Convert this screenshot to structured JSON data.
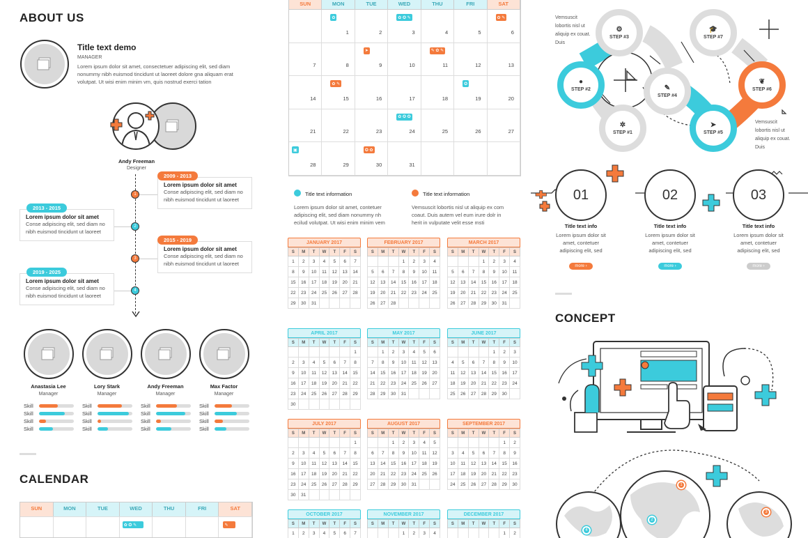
{
  "about": {
    "title": "ABOUT US",
    "demo_title": "Title text demo",
    "demo_role": "MANAGER",
    "demo_text": "Lorem ipsum dolor sit amet, consectetuer adipiscing elit, sed diam nonummy nibh euismod tincidunt ut laoreet dolore gna aliquam erat volutpat. Ut wisi enim minim vm, quis nostrud exerci tation",
    "person_name": "Andy Freeman",
    "person_role": "Designer"
  },
  "timeline": [
    {
      "period": "2009 - 2013",
      "title": "Lorem ipsum dolor sit amet",
      "text": "Conse adipiscing elit, sed diam no nibh euismod tincidunt ut laoreet",
      "node": "1",
      "color": "#f47a3c",
      "side": "right"
    },
    {
      "period": "2013 - 2015",
      "title": "Lorem ipsum dolor sit amet",
      "text": "Conse adipiscing elit, sed diam no nibh euismod tincidunt ut laoreet",
      "node": "2",
      "color": "#3ccbdc",
      "side": "left"
    },
    {
      "period": "2015 - 2019",
      "title": "Lorem ipsum dolor sit amet",
      "text": "Conse adipiscing elit, sed diam no nibh euismod tincidunt ut laoreet",
      "node": "3",
      "color": "#f47a3c",
      "side": "right"
    },
    {
      "period": "2019 - 2025",
      "title": "Lorem ipsum dolor sit amet",
      "text": "Conse adipiscing elit, sed diam no nibh euismod tincidunt ut laoreet",
      "node": "4",
      "color": "#3ccbdc",
      "side": "left"
    }
  ],
  "team": [
    {
      "name": "Anastasia Lee",
      "role": "Manager",
      "skills": [
        {
          "label": "Skill",
          "level": 0.55,
          "color": "#f47a3c"
        },
        {
          "label": "Skill",
          "level": 0.75,
          "color": "#3ccbdc"
        },
        {
          "label": "Skill",
          "level": 0.2,
          "color": "#f47a3c"
        },
        {
          "label": "Skill",
          "level": 0.4,
          "color": "#3ccbdc"
        }
      ]
    },
    {
      "name": "Lory Stark",
      "role": "Manager",
      "skills": [
        {
          "label": "Skill",
          "level": 0.7,
          "color": "#f47a3c"
        },
        {
          "label": "Skill",
          "level": 0.9,
          "color": "#3ccbdc"
        },
        {
          "label": "Skill",
          "level": 0.1,
          "color": "#f47a3c"
        },
        {
          "label": "Skill",
          "level": 0.3,
          "color": "#3ccbdc"
        }
      ]
    },
    {
      "name": "Andy Freeman",
      "role": "Manager",
      "skills": [
        {
          "label": "Skill",
          "level": 0.6,
          "color": "#f47a3c"
        },
        {
          "label": "Skill",
          "level": 0.85,
          "color": "#3ccbdc"
        },
        {
          "label": "Skill",
          "level": 0.15,
          "color": "#f47a3c"
        },
        {
          "label": "Skill",
          "level": 0.45,
          "color": "#3ccbdc"
        }
      ]
    },
    {
      "name": "Max Factor",
      "role": "Manager",
      "skills": [
        {
          "label": "Skill",
          "level": 0.5,
          "color": "#f47a3c"
        },
        {
          "label": "Skill",
          "level": 0.65,
          "color": "#3ccbdc"
        },
        {
          "label": "Skill",
          "level": 0.25,
          "color": "#f47a3c"
        },
        {
          "label": "Skill",
          "level": 0.35,
          "color": "#3ccbdc"
        }
      ]
    }
  ],
  "calendar_title": "CALENDAR",
  "weekdays": [
    "SUN",
    "MON",
    "TUE",
    "WED",
    "THU",
    "FRI",
    "SAT"
  ],
  "big_calendar": {
    "rows": [
      [
        "",
        "1",
        "2",
        "3",
        "4",
        "5",
        "6"
      ],
      [
        "7",
        "8",
        "9",
        "10",
        "11",
        "12",
        "13"
      ],
      [
        "14",
        "15",
        "16",
        "17",
        "18",
        "19",
        "20"
      ],
      [
        "21",
        "22",
        "23",
        "24",
        "25",
        "26",
        "27"
      ],
      [
        "28",
        "29",
        "30",
        "31",
        "",
        "",
        ""
      ]
    ]
  },
  "big_days": [
    [
      "",
      "1",
      "2",
      "3",
      "4",
      "5",
      "6"
    ],
    [
      "7",
      "8",
      "9",
      "10",
      "11",
      "12",
      "13"
    ],
    [
      "14",
      "15",
      "16",
      "17",
      "18",
      "19",
      "20"
    ],
    [
      "21",
      "22",
      "23",
      "24",
      "25",
      "26",
      "27"
    ],
    [
      "28",
      "29",
      "30",
      "31",
      "",
      "",
      ""
    ]
  ],
  "big_calendar_top_rows": [
    [
      "",
      "1",
      "2",
      "3",
      "4",
      "5",
      "6"
    ],
    [
      "7",
      "8",
      "9",
      "10",
      "11",
      "12",
      "13"
    ],
    [
      "14",
      "15",
      "16",
      "17",
      "18",
      "19",
      "20"
    ],
    [
      "21",
      "22",
      "23",
      "24",
      "25",
      "26",
      "27"
    ],
    [
      "28",
      "29",
      "30",
      "31",
      "",
      "",
      ""
    ]
  ],
  "legend": [
    {
      "title": "Title text information",
      "text": "Lorem ipsum dolor sit amet, contetuer adipiscing elit, sed diam nonummy nh ecilud volutpat. Ut wisi enim minim vem",
      "color": "#3ccbdc"
    },
    {
      "title": "Title text information",
      "text": "Vemsuscit lobortis nisl ut aliquip ex com coaut. Duis autem vel eum irure dolr in herit in vulputate velit esse msti",
      "color": "#f47a3c"
    }
  ],
  "months": [
    {
      "name": "JANUARY 2017",
      "color": "#f47a3c",
      "bg": "#fde3d6",
      "weeks": [
        [
          "1",
          "2",
          "3",
          "4",
          "5",
          "6",
          "7"
        ],
        [
          "8",
          "9",
          "10",
          "11",
          "12",
          "13",
          "14"
        ],
        [
          "15",
          "16",
          "17",
          "18",
          "19",
          "20",
          "21"
        ],
        [
          "22",
          "23",
          "24",
          "25",
          "26",
          "27",
          "28"
        ],
        [
          "29",
          "30",
          "31",
          "",
          "",
          "",
          ""
        ]
      ]
    },
    {
      "name": "FEBRUARY 2017",
      "color": "#f47a3c",
      "bg": "#fde3d6",
      "weeks": [
        [
          "",
          "",
          "",
          "1",
          "2",
          "3",
          "4"
        ],
        [
          "5",
          "6",
          "7",
          "8",
          "9",
          "10",
          "11"
        ],
        [
          "12",
          "13",
          "14",
          "15",
          "16",
          "17",
          "18"
        ],
        [
          "19",
          "20",
          "21",
          "22",
          "23",
          "24",
          "25"
        ],
        [
          "26",
          "27",
          "28",
          "",
          "",
          "",
          ""
        ]
      ]
    },
    {
      "name": "MARCH 2017",
      "color": "#f47a3c",
      "bg": "#fde3d6",
      "weeks": [
        [
          "",
          "",
          "",
          "1",
          "2",
          "3",
          "4"
        ],
        [
          "5",
          "6",
          "7",
          "8",
          "9",
          "10",
          "11"
        ],
        [
          "12",
          "13",
          "14",
          "15",
          "16",
          "17",
          "18"
        ],
        [
          "19",
          "20",
          "21",
          "22",
          "23",
          "24",
          "25"
        ],
        [
          "26",
          "27",
          "28",
          "29",
          "30",
          "31",
          ""
        ]
      ]
    },
    {
      "name": "APRIL 2017",
      "color": "#3ccbdc",
      "bg": "#d6f4f8",
      "weeks": [
        [
          "",
          "",
          "",
          "",
          "",
          "",
          "1"
        ],
        [
          "2",
          "3",
          "4",
          "5",
          "6",
          "7",
          "8"
        ],
        [
          "9",
          "10",
          "11",
          "12",
          "13",
          "14",
          "15"
        ],
        [
          "16",
          "17",
          "18",
          "19",
          "20",
          "21",
          "22"
        ],
        [
          "23",
          "24",
          "25",
          "26",
          "27",
          "28",
          "29"
        ],
        [
          "30",
          "",
          "",
          "",
          "",
          "",
          ""
        ]
      ]
    },
    {
      "name": "MAY 2017",
      "color": "#3ccbdc",
      "bg": "#d6f4f8",
      "weeks": [
        [
          "",
          "1",
          "2",
          "3",
          "4",
          "5",
          "6"
        ],
        [
          "7",
          "8",
          "9",
          "10",
          "11",
          "12",
          "13"
        ],
        [
          "14",
          "15",
          "16",
          "17",
          "18",
          "19",
          "20"
        ],
        [
          "21",
          "22",
          "23",
          "24",
          "25",
          "26",
          "27"
        ],
        [
          "28",
          "29",
          "30",
          "31",
          "",
          "",
          ""
        ]
      ]
    },
    {
      "name": "JUNE 2017",
      "color": "#3ccbdc",
      "bg": "#d6f4f8",
      "weeks": [
        [
          "",
          "",
          "",
          "",
          "1",
          "2",
          "3"
        ],
        [
          "4",
          "5",
          "6",
          "7",
          "8",
          "9",
          "10"
        ],
        [
          "11",
          "12",
          "13",
          "14",
          "15",
          "16",
          "17"
        ],
        [
          "18",
          "19",
          "20",
          "21",
          "22",
          "23",
          "24"
        ],
        [
          "25",
          "26",
          "27",
          "28",
          "29",
          "30",
          ""
        ]
      ]
    },
    {
      "name": "JULY 2017",
      "color": "#f47a3c",
      "bg": "#fde3d6",
      "weeks": [
        [
          "",
          "",
          "",
          "",
          "",
          "",
          "1"
        ],
        [
          "2",
          "3",
          "4",
          "5",
          "6",
          "7",
          "8"
        ],
        [
          "9",
          "10",
          "11",
          "12",
          "13",
          "14",
          "15"
        ],
        [
          "16",
          "17",
          "18",
          "19",
          "20",
          "21",
          "22"
        ],
        [
          "23",
          "24",
          "25",
          "26",
          "27",
          "28",
          "29"
        ],
        [
          "30",
          "31",
          "",
          "",
          "",
          "",
          ""
        ]
      ]
    },
    {
      "name": "AUGUST 2017",
      "color": "#f47a3c",
      "bg": "#fde3d6",
      "weeks": [
        [
          "",
          "",
          "1",
          "2",
          "3",
          "4",
          "5"
        ],
        [
          "6",
          "7",
          "8",
          "9",
          "10",
          "11",
          "12"
        ],
        [
          "13",
          "14",
          "15",
          "16",
          "17",
          "18",
          "19"
        ],
        [
          "20",
          "21",
          "22",
          "23",
          "24",
          "25",
          "26"
        ],
        [
          "27",
          "28",
          "29",
          "30",
          "31",
          "",
          ""
        ]
      ]
    },
    {
      "name": "SEPTEMBER 2017",
      "color": "#f47a3c",
      "bg": "#fde3d6",
      "weeks": [
        [
          "",
          "",
          "",
          "",
          "",
          "1",
          "2"
        ],
        [
          "3",
          "4",
          "5",
          "6",
          "7",
          "8",
          "9"
        ],
        [
          "10",
          "11",
          "12",
          "13",
          "14",
          "15",
          "16"
        ],
        [
          "17",
          "18",
          "19",
          "20",
          "21",
          "22",
          "23"
        ],
        [
          "24",
          "25",
          "26",
          "27",
          "28",
          "29",
          "30"
        ]
      ]
    },
    {
      "name": "OCTOBER 2017",
      "color": "#3ccbdc",
      "bg": "#d6f4f8",
      "weeks": [
        [
          "1",
          "2",
          "3",
          "4",
          "5",
          "6",
          "7"
        ]
      ]
    },
    {
      "name": "NOVEMBER 2017",
      "color": "#3ccbdc",
      "bg": "#d6f4f8",
      "weeks": [
        [
          "",
          "",
          "",
          "1",
          "2",
          "3",
          "4"
        ]
      ]
    },
    {
      "name": "DECEMBER 2017",
      "color": "#3ccbdc",
      "bg": "#d6f4f8",
      "weeks": [
        [
          "",
          "",
          "",
          "",
          "",
          "1",
          "2"
        ]
      ]
    }
  ],
  "mini_weekdays": [
    "S",
    "M",
    "T",
    "W",
    "T",
    "F",
    "S"
  ],
  "steps": {
    "labels": [
      "STEP #1",
      "STEP #2",
      "STEP #3",
      "STEP #4",
      "STEP #5",
      "STEP #6",
      "STEP #7"
    ],
    "note_top": "Vemsuscit lobortis nisl ut aliquip ex couat. Duis",
    "note_bottom": "Vemsuscit lobortis nisl ut aliquip ex couat. Duis"
  },
  "numbered": [
    {
      "num": "01",
      "title": "Title text info",
      "text": "Lorem ipsum dolor sit amet, contetuer adipiscing elit, sed",
      "more": "more ›",
      "color": "#f47a3c"
    },
    {
      "num": "02",
      "title": "Title text info",
      "text": "Lorem ipsum dolor sit amet, contetuer adipiscing elit, sed",
      "more": "more ›",
      "color": "#3ccbdc"
    },
    {
      "num": "03",
      "title": "Title text info",
      "text": "Lorem ipsum dolor sit amet, contetuer adipiscing elit, sed",
      "more": "more ›",
      "color": "#ccc"
    }
  ],
  "concept_title": "CONCEPT",
  "globe_nodes": [
    "1",
    "2",
    "3",
    "4"
  ]
}
